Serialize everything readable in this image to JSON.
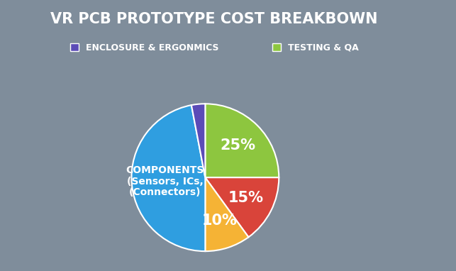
{
  "chart_data": {
    "type": "pie",
    "title": "VR PCB PROTOTYPE COST BREAKBOWN",
    "categories": [
      "TESTING & QA",
      null,
      null,
      "COMPONENTS\n(Sensors, ICs,\n(Connectors)",
      "ENCLOSURE & ERGONMICS"
    ],
    "values": [
      25,
      15,
      10,
      47,
      3
    ],
    "value_labels": [
      "25%",
      "15%",
      "10%",
      null,
      null
    ],
    "colors": [
      "#8dc63f",
      "#d9443a",
      "#f5b335",
      "#2f9ee0",
      "#5b4bb7"
    ],
    "legend": "upper center",
    "data_labels": true
  }
}
